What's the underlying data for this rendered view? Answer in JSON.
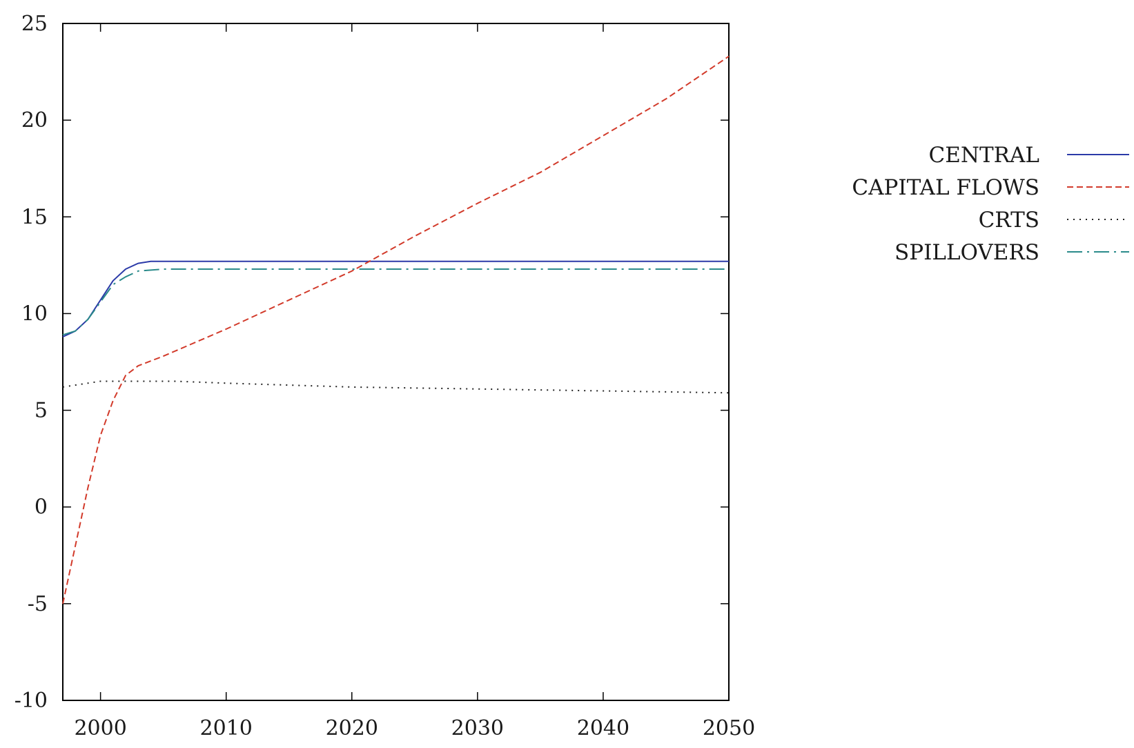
{
  "chart_data": {
    "type": "line",
    "title": "",
    "xlabel": "",
    "ylabel": "",
    "xlim": [
      1997,
      2050
    ],
    "ylim": [
      -10,
      25
    ],
    "x_ticks": [
      2000,
      2010,
      2020,
      2030,
      2040,
      2050
    ],
    "y_ticks": [
      -10,
      -5,
      0,
      5,
      10,
      15,
      20,
      25
    ],
    "x_tick_labels": [
      "2000",
      "2010",
      "2020",
      "2030",
      "2040",
      "2050"
    ],
    "y_tick_labels": [
      "-10",
      "-5",
      "0",
      "5",
      "10",
      "15",
      "20",
      "25"
    ],
    "grid": false,
    "legend_position": "right",
    "series": [
      {
        "name": "CENTRAL",
        "color": "#2b3aa8",
        "dash": "solid",
        "points": [
          [
            1997,
            8.8
          ],
          [
            1998,
            9.1
          ],
          [
            1999,
            9.7
          ],
          [
            2000,
            10.7
          ],
          [
            2001,
            11.7
          ],
          [
            2002,
            12.3
          ],
          [
            2003,
            12.6
          ],
          [
            2004,
            12.7
          ],
          [
            2006,
            12.7
          ],
          [
            2050,
            12.7
          ]
        ]
      },
      {
        "name": "CAPITAL FLOWS",
        "color": "#d23a2a",
        "dash": "dashed",
        "points": [
          [
            1997,
            -5.0
          ],
          [
            1998,
            -2.0
          ],
          [
            1999,
            1.0
          ],
          [
            2000,
            3.7
          ],
          [
            2001,
            5.5
          ],
          [
            2002,
            6.8
          ],
          [
            2003,
            7.3
          ],
          [
            2005,
            7.8
          ],
          [
            2010,
            9.2
          ],
          [
            2015,
            10.7
          ],
          [
            2020,
            12.2
          ],
          [
            2025,
            14.0
          ],
          [
            2030,
            15.7
          ],
          [
            2035,
            17.3
          ],
          [
            2040,
            19.2
          ],
          [
            2045,
            21.1
          ],
          [
            2050,
            23.3
          ]
        ]
      },
      {
        "name": "CRTS",
        "color": "#222222",
        "dash": "dotted",
        "points": [
          [
            1997,
            6.2
          ],
          [
            1999,
            6.4
          ],
          [
            2000,
            6.5
          ],
          [
            2003,
            6.5
          ],
          [
            2006,
            6.5
          ],
          [
            2010,
            6.4
          ],
          [
            2020,
            6.2
          ],
          [
            2030,
            6.1
          ],
          [
            2040,
            6.0
          ],
          [
            2050,
            5.9
          ]
        ]
      },
      {
        "name": "SPILLOVERS",
        "color": "#2a8a8a",
        "dash": "dashdot",
        "points": [
          [
            1997,
            8.9
          ],
          [
            1998,
            9.1
          ],
          [
            1999,
            9.7
          ],
          [
            2000,
            10.6
          ],
          [
            2001,
            11.5
          ],
          [
            2002,
            11.9
          ],
          [
            2003,
            12.2
          ],
          [
            2005,
            12.3
          ],
          [
            2050,
            12.3
          ]
        ]
      }
    ]
  }
}
